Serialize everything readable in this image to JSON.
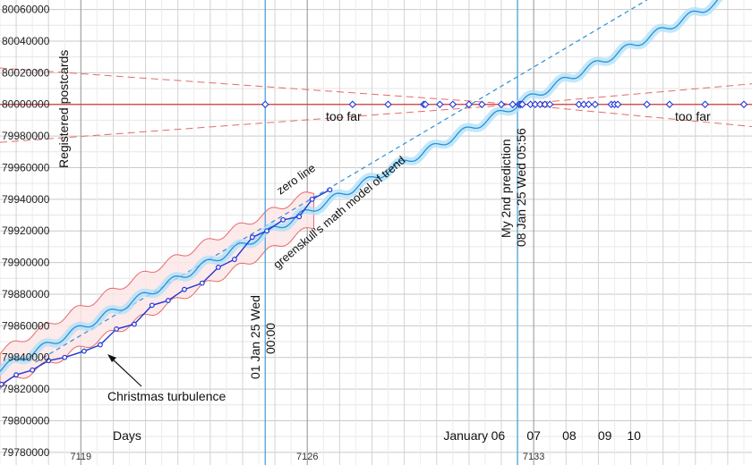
{
  "chart_data": {
    "type": "line",
    "ylabel": "Registered postcards",
    "xlabel": "Days",
    "xlim": [
      7116.5,
      7139.75
    ],
    "ylim": [
      79772000,
      80066000
    ],
    "y_ticks": [
      79780000,
      79800000,
      79820000,
      79840000,
      79860000,
      79880000,
      79900000,
      79920000,
      79940000,
      79960000,
      79980000,
      80000000,
      80020000,
      80040000,
      80060000
    ],
    "x_ticks": [
      7119,
      7126,
      7133
    ],
    "grid": true,
    "month_labels": [
      {
        "text": "January",
        "x": 7130.9
      },
      {
        "text": "06",
        "x": 7131.9
      },
      {
        "text": "07",
        "x": 7133.0
      },
      {
        "text": "08",
        "x": 7134.1
      },
      {
        "text": "09",
        "x": 7135.2
      },
      {
        "text": "10",
        "x": 7136.1
      }
    ],
    "target_level": 80000000,
    "vertical_markers": [
      {
        "x": 7124.7,
        "label_lines": [
          "01 Jan 25 Wed",
          "00:00"
        ]
      },
      {
        "x": 7132.5,
        "label_lines": [
          "My 2nd prediction",
          "08 Jan 25 Wed 05:56"
        ]
      }
    ],
    "annotations": {
      "zero_line": "zero line",
      "model": "greenskull's math model of trend",
      "christmas": "Christmas turbulence",
      "too_far_left": "too far",
      "too_far_right": "too far"
    },
    "series": [
      {
        "values_x": [
          7116.55,
          7117.0,
          7117.5,
          7118.0,
          7118.5,
          7119.1,
          7119.6,
          7120.1,
          7120.65,
          7121.2,
          7121.7,
          7122.2,
          7122.75,
          7123.25,
          7123.75,
          7124.3,
          7124.75,
          7125.25,
          7125.75,
          7126.15,
          7126.7
        ],
        "values_y": [
          79823000,
          79829000,
          79832000,
          79838000,
          79840000,
          79844000,
          79848000,
          79858000,
          79861000,
          79873000,
          79876000,
          79883000,
          79887000,
          79897000,
          79902000,
          79916000,
          79920000,
          79927000,
          79929000,
          79940000,
          79946000
        ]
      }
    ],
    "predictions_x": [
      7124.7,
      7127.4,
      7128.5,
      7129.6,
      7129.65,
      7130.1,
      7130.5,
      7131.0,
      7131.4,
      7132.0,
      7132.35,
      7132.55,
      7132.6,
      7132.65,
      7132.9,
      7133.05,
      7133.2,
      7133.35,
      7133.5,
      7134.4,
      7134.55,
      7134.7,
      7134.9,
      7135.4,
      7135.5,
      7135.6,
      7136.5,
      7137.2,
      7138.3,
      7139.5
    ],
    "colors": {
      "data": "#1f35d6",
      "model": "#2b8fd8",
      "band": "#ade0f8",
      "target": "#d33a3a",
      "envelope": "#e66a6a",
      "envelope_fill": "#fde6e6",
      "grid": "#d6d6d6",
      "marker": "#4aa3d8"
    }
  }
}
